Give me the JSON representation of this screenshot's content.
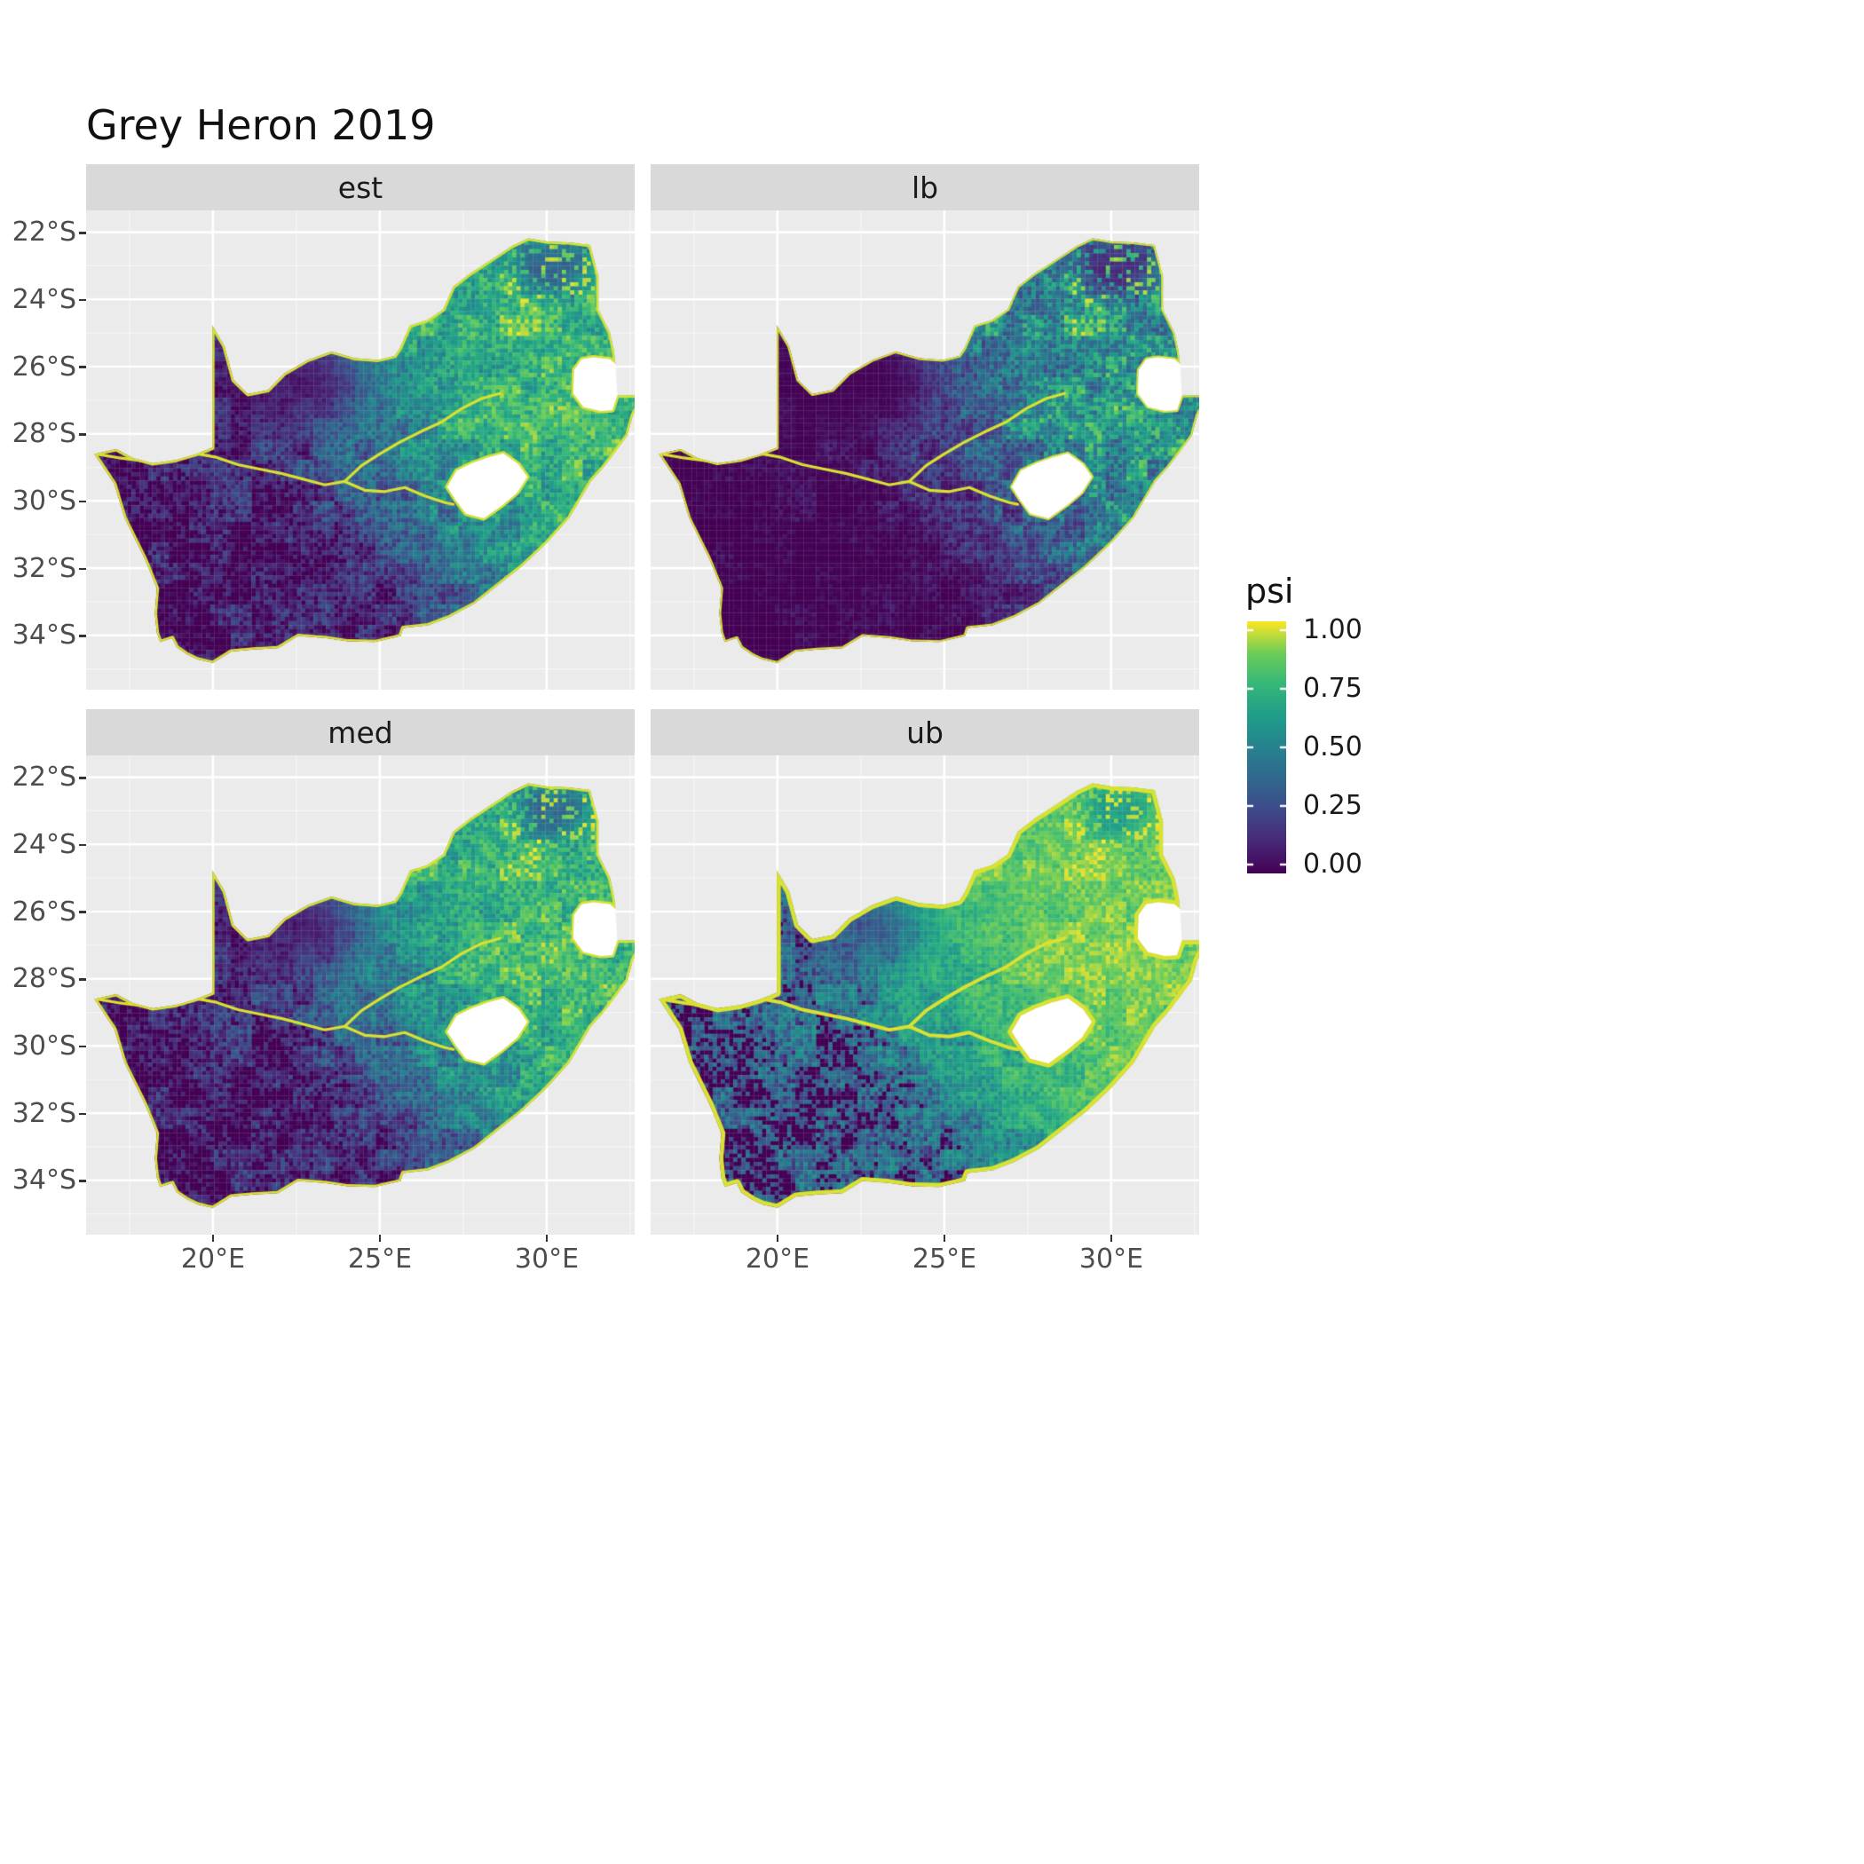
{
  "title": "Grey Heron 2019",
  "facets": [
    {
      "key": "est",
      "label": "est"
    },
    {
      "key": "lb",
      "label": "lb"
    },
    {
      "key": "med",
      "label": "med"
    },
    {
      "key": "ub",
      "label": "ub"
    }
  ],
  "axes": {
    "y_tick_labels": [
      "22°S",
      "24°S",
      "26°S",
      "28°S",
      "30°S",
      "32°S",
      "34°S"
    ],
    "x_tick_labels": [
      "20°E",
      "25°E",
      "30°E"
    ]
  },
  "legend": {
    "title": "psi",
    "tick_labels": [
      "1.00",
      "0.75",
      "0.50",
      "0.25",
      "0.00"
    ]
  },
  "colors": {
    "background": "#FFFFFF",
    "panel_bg": "#EBEBEB",
    "strip_bg": "#D9D9D9",
    "grid_major": "#FFFFFF",
    "axis_text": "#4D4D4D",
    "text": "#1A1A1A",
    "tick_mark": "#333333",
    "na_fill": "#FFFFFF",
    "viridis": [
      "#440154",
      "#482878",
      "#3E4A89",
      "#31688E",
      "#26828E",
      "#1F9E89",
      "#35B779",
      "#6DCD59",
      "#FDE725"
    ]
  },
  "chart_data": {
    "type": "heatmap",
    "subtype": "faceted raster occupancy map, 2x2 grid",
    "title": "Grey Heron 2019",
    "region": "South Africa",
    "facet_order": [
      "est",
      "lb",
      "med",
      "ub"
    ],
    "facets": [
      {
        "name": "est",
        "meaning": "occupancy estimate",
        "relative_level": "medium"
      },
      {
        "name": "lb",
        "meaning": "lower bound",
        "relative_level": "lowest, most dark purple"
      },
      {
        "name": "med",
        "meaning": "median",
        "relative_level": "medium"
      },
      {
        "name": "ub",
        "meaning": "upper bound",
        "relative_level": "highest, most yellow"
      }
    ],
    "value_variable": {
      "name": "psi",
      "limits": [
        0.0,
        1.0
      ],
      "legend_breaks": [
        1.0,
        0.75,
        0.5,
        0.25,
        0.0
      ],
      "palette": "viridis",
      "na_color": "white"
    },
    "x_axis": {
      "tick_labels": [
        "20°E",
        "25°E",
        "30°E"
      ],
      "tick_values_deg_east": [
        20,
        25,
        30
      ],
      "approx_range_deg_east": [
        16.2,
        32.7
      ]
    },
    "y_axis": {
      "tick_labels": [
        "22°S",
        "24°S",
        "26°S",
        "28°S",
        "30°S",
        "32°S",
        "34°S"
      ],
      "tick_values_deg": [
        -22,
        -24,
        -26,
        -28,
        -30,
        -32,
        -34
      ],
      "approx_range_deg": [
        -35.6,
        -21.4
      ]
    },
    "no_data_regions": [
      "Lesotho",
      "Eswatini"
    ],
    "pattern_summary": "Dark purple (psi near 0) over the arid western and central interior and far northern Kalahari; yellow (psi near 1) along the coastline, along the Orange and Vaal river courses and across the northeastern interior; the lb panel is darkest overall, the ub panel brightest overall, est and med are intermediate.",
    "legend_position": "right",
    "panel_grid": "white major gridlines on grey panel background"
  }
}
